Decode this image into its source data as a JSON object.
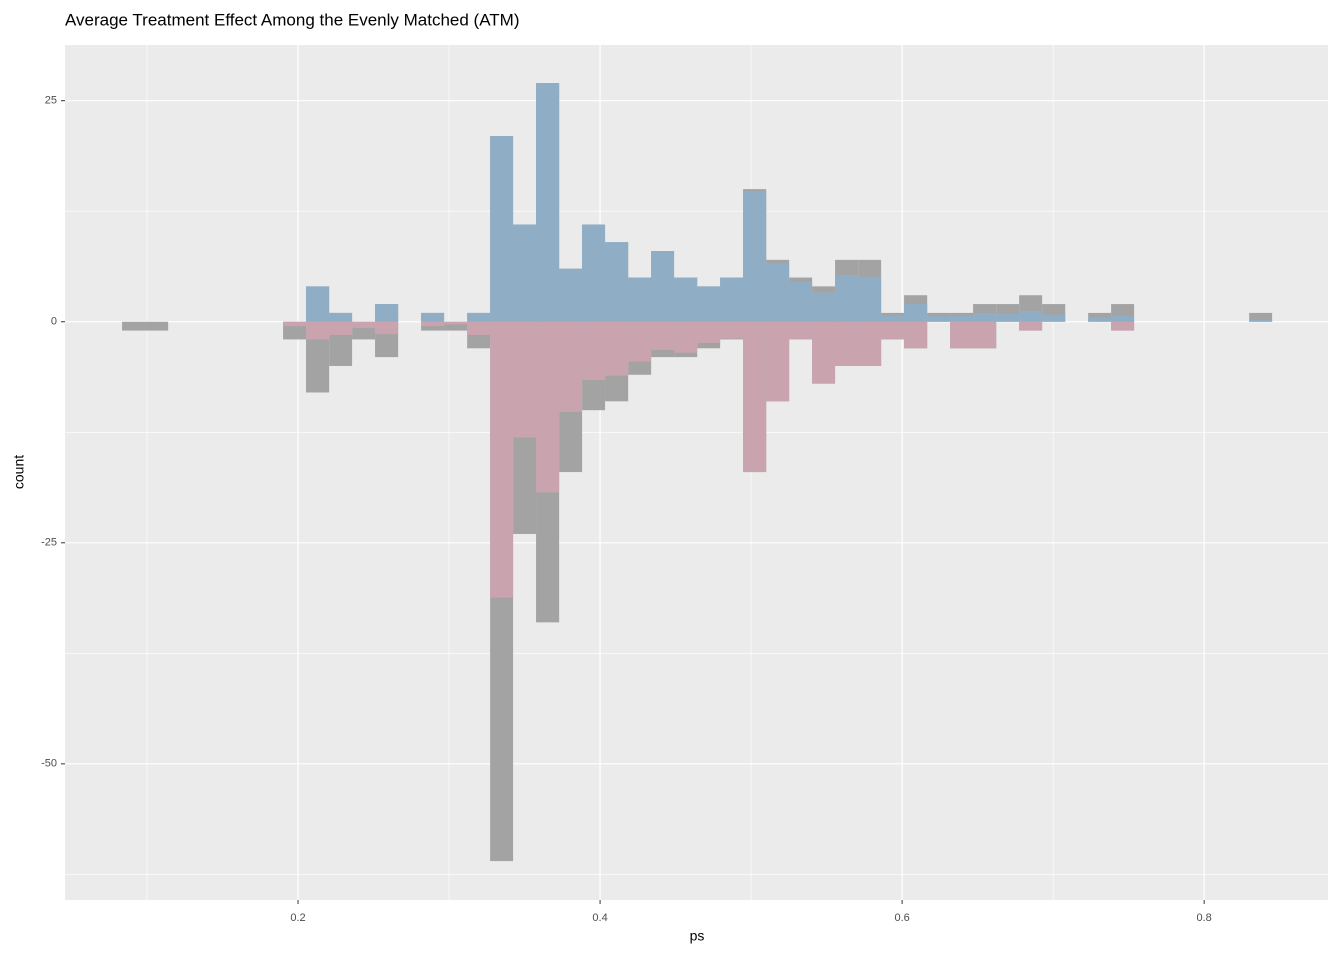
{
  "chart_data": {
    "type": "histogram",
    "title": "Average Treatment Effect Among the Evenly Matched (ATM)",
    "x_label": "ps",
    "y_label": "count",
    "bins": [
      0.0835,
      0.0987,
      0.114,
      0.1292,
      0.1444,
      0.1597,
      0.1749,
      0.1901,
      0.2053,
      0.2206,
      0.2358,
      0.251,
      0.2663,
      0.2815,
      0.2967,
      0.312,
      0.3272,
      0.3424,
      0.3576,
      0.3729,
      0.3881,
      0.4033,
      0.4186,
      0.4338,
      0.449,
      0.4643,
      0.4795,
      0.4947,
      0.51,
      0.5252,
      0.5404,
      0.5556,
      0.5709,
      0.5861,
      0.6013,
      0.6166,
      0.6318,
      0.647,
      0.6623,
      0.6775,
      0.6927,
      0.708,
      0.7232,
      0.7384,
      0.7536,
      0.7689,
      0.7841,
      0.7993,
      0.8146,
      0.8298,
      0.845
    ],
    "series": [
      {
        "color": "#a3a3a3",
        "values": [
          0,
          0,
          0,
          0,
          0,
          0,
          0,
          0,
          4,
          1,
          0,
          2,
          0,
          1,
          0,
          1,
          21,
          11,
          27,
          6,
          11,
          9,
          5,
          8,
          5,
          4,
          5,
          15,
          7,
          5,
          4,
          7,
          7,
          1,
          3,
          1,
          1,
          2,
          2,
          3,
          2,
          0,
          1,
          2,
          0,
          0,
          0,
          0,
          0,
          1
        ]
      },
      {
        "color": "#8faec6",
        "values": [
          0,
          0,
          0,
          0,
          0,
          0,
          0,
          0,
          4,
          1,
          0,
          2,
          0,
          1,
          0,
          1,
          21,
          11,
          27,
          6,
          11,
          9,
          5,
          8,
          5,
          4,
          5,
          14.8,
          6.6,
          4.5,
          3.3,
          5.3,
          5.1,
          0.7,
          2,
          0.7,
          0.7,
          1,
          0.9,
          1.2,
          0.8,
          0,
          0.5,
          0.7,
          0,
          0,
          0,
          0,
          0,
          0.2
        ]
      },
      {
        "color": "#a3a3a3",
        "values": [
          -1,
          -1,
          0,
          0,
          0,
          0,
          0,
          -2,
          -8,
          -5,
          -2,
          -4,
          0,
          -1,
          -1,
          -3,
          -61,
          -24,
          -34,
          -17,
          -10,
          -9,
          -6,
          -4,
          -4,
          -3,
          -2,
          -17,
          -9,
          -2,
          -7,
          -5,
          -5,
          -2,
          -3,
          0,
          -3,
          -3,
          0,
          -1,
          0,
          0,
          0,
          -1,
          0,
          0,
          0,
          0,
          0,
          0
        ]
      },
      {
        "color": "#c9a4af",
        "values": [
          0,
          0,
          0,
          0,
          0,
          0,
          0,
          -0.5,
          -2,
          -1.5,
          -0.7,
          -1.4,
          0,
          -0.5,
          -0.3,
          -1.5,
          -31.2,
          -13.1,
          -19.3,
          -10.2,
          -6.6,
          -6.1,
          -4.5,
          -3.2,
          -3.5,
          -2.4,
          -1.9,
          -17,
          -9,
          -2,
          -7,
          -5,
          -5,
          -2,
          -3,
          0,
          -3,
          -3,
          0,
          -1,
          0,
          0,
          0,
          -1,
          0,
          0,
          0,
          0,
          0,
          0
        ]
      }
    ],
    "xlim": [
      0.0457,
      0.882
    ],
    "ylim": [
      -65.4,
      31.3
    ],
    "xticks": [
      0.2,
      0.4,
      0.6,
      0.8
    ],
    "yticks": [
      -50,
      -25,
      0,
      25
    ],
    "grid": true
  }
}
